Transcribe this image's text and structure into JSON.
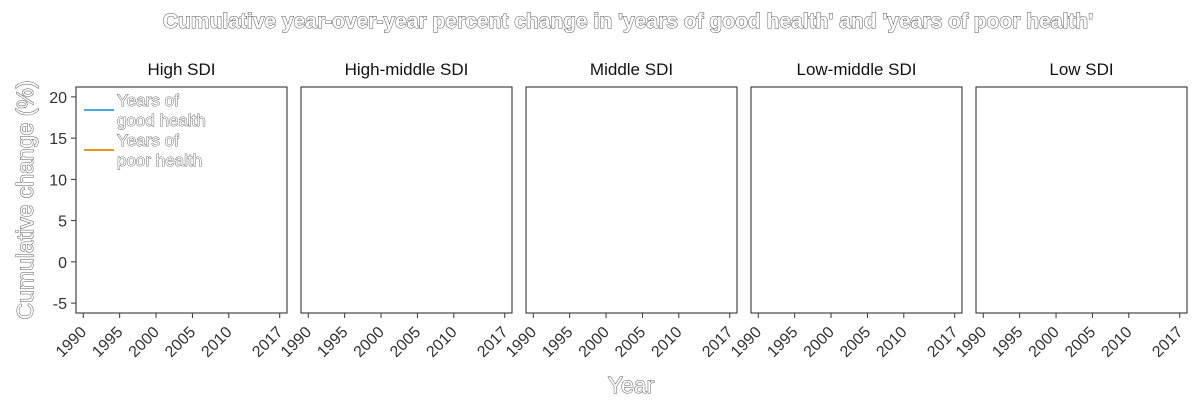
{
  "chart_data": {
    "type": "line",
    "title": "Cumulative year-over-year percent change in 'years of good health' and 'years of poor health'",
    "xlabel": "Year",
    "ylabel": "Cumulative change (%)",
    "panels": [
      "High SDI",
      "High-middle SDI",
      "Middle SDI",
      "Low-middle SDI",
      "Low SDI"
    ],
    "x_ticks": [
      1990,
      1995,
      2000,
      2005,
      2010,
      2017
    ],
    "xlim": [
      1989,
      2018
    ],
    "y_ticks": [
      -5,
      0,
      5,
      10,
      15,
      20
    ],
    "ylim": [
      -6.2,
      21.2
    ],
    "grid": false,
    "legend_placement": "top-left",
    "series": [
      {
        "name": "Years of good health",
        "legend_lines": [
          "Years of",
          "good health"
        ],
        "color": "#4aa8dc",
        "values": []
      },
      {
        "name": "Years of poor health",
        "legend_lines": [
          "Years of",
          "poor health"
        ],
        "color": "#e8961e",
        "values": []
      }
    ]
  }
}
